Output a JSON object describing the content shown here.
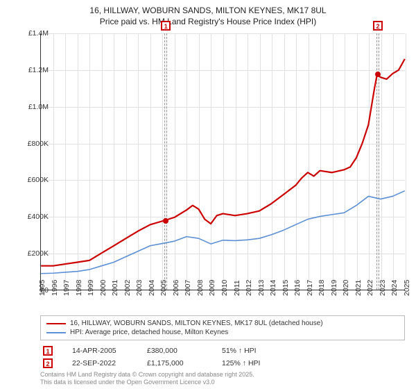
{
  "title": {
    "line1": "16, HILLWAY, WOBURN SANDS, MILTON KEYNES, MK17 8UL",
    "line2": "Price paid vs. HM Land Registry's House Price Index (HPI)"
  },
  "chart": {
    "type": "line",
    "background_color": "#ffffff",
    "grid_color": "#e0e0e0",
    "axis_color": "#333333",
    "x": {
      "min": 1995,
      "max": 2025,
      "ticks": [
        1995,
        1996,
        1997,
        1998,
        1999,
        2000,
        2001,
        2002,
        2003,
        2004,
        2005,
        2006,
        2007,
        2008,
        2009,
        2010,
        2011,
        2012,
        2013,
        2014,
        2015,
        2016,
        2017,
        2018,
        2019,
        2020,
        2021,
        2022,
        2023,
        2024,
        2025
      ],
      "label_fontsize": 10.5,
      "rotation": -90
    },
    "y": {
      "min": 0,
      "max": 1400000,
      "ticks": [
        0,
        200000,
        400000,
        600000,
        800000,
        1000000,
        1200000,
        1400000
      ],
      "tick_labels": [
        "£0",
        "£200K",
        "£400K",
        "£600K",
        "£800K",
        "£1.0M",
        "£1.2M",
        "£1.4M"
      ],
      "label_fontsize": 10.5
    },
    "bands": [
      {
        "id": "1",
        "x": 2005.28,
        "width_years": 0.25
      },
      {
        "id": "2",
        "x": 2022.72,
        "width_years": 0.25
      }
    ],
    "series": [
      {
        "name": "price_paid",
        "label": "16, HILLWAY, WOBURN SANDS, MILTON KEYNES, MK17 8UL (detached house)",
        "color": "#cc0000",
        "line_width": 2.2,
        "points": [
          [
            1995,
            130000
          ],
          [
            1996,
            130000
          ],
          [
            1997,
            140000
          ],
          [
            1998,
            150000
          ],
          [
            1999,
            160000
          ],
          [
            2000,
            200000
          ],
          [
            2001,
            240000
          ],
          [
            2002,
            280000
          ],
          [
            2003,
            320000
          ],
          [
            2004,
            355000
          ],
          [
            2005.28,
            380000
          ],
          [
            2006,
            395000
          ],
          [
            2007,
            435000
          ],
          [
            2007.5,
            460000
          ],
          [
            2008,
            440000
          ],
          [
            2008.5,
            385000
          ],
          [
            2009,
            360000
          ],
          [
            2009.5,
            405000
          ],
          [
            2010,
            415000
          ],
          [
            2011,
            405000
          ],
          [
            2012,
            415000
          ],
          [
            2013,
            430000
          ],
          [
            2014,
            470000
          ],
          [
            2015,
            520000
          ],
          [
            2016,
            570000
          ],
          [
            2016.5,
            610000
          ],
          [
            2017,
            640000
          ],
          [
            2017.5,
            620000
          ],
          [
            2018,
            650000
          ],
          [
            2019,
            640000
          ],
          [
            2020,
            655000
          ],
          [
            2020.5,
            670000
          ],
          [
            2021,
            720000
          ],
          [
            2021.5,
            800000
          ],
          [
            2022,
            900000
          ],
          [
            2022.5,
            1100000
          ],
          [
            2022.72,
            1175000
          ],
          [
            2023,
            1160000
          ],
          [
            2023.5,
            1150000
          ],
          [
            2024,
            1180000
          ],
          [
            2024.5,
            1200000
          ],
          [
            2025,
            1260000
          ]
        ]
      },
      {
        "name": "hpi",
        "label": "HPI: Average price, detached house, Milton Keynes",
        "color": "#5b8fd6",
        "line_width": 1.6,
        "points": [
          [
            1995,
            88000
          ],
          [
            1996,
            90000
          ],
          [
            1997,
            95000
          ],
          [
            1998,
            100000
          ],
          [
            1999,
            110000
          ],
          [
            2000,
            130000
          ],
          [
            2001,
            150000
          ],
          [
            2002,
            180000
          ],
          [
            2003,
            210000
          ],
          [
            2004,
            240000
          ],
          [
            2005,
            252000
          ],
          [
            2006,
            265000
          ],
          [
            2007,
            290000
          ],
          [
            2008,
            280000
          ],
          [
            2009,
            250000
          ],
          [
            2010,
            270000
          ],
          [
            2011,
            268000
          ],
          [
            2012,
            272000
          ],
          [
            2013,
            280000
          ],
          [
            2014,
            300000
          ],
          [
            2015,
            325000
          ],
          [
            2016,
            355000
          ],
          [
            2017,
            385000
          ],
          [
            2018,
            400000
          ],
          [
            2019,
            410000
          ],
          [
            2020,
            420000
          ],
          [
            2021,
            460000
          ],
          [
            2022,
            510000
          ],
          [
            2023,
            495000
          ],
          [
            2024,
            510000
          ],
          [
            2025,
            540000
          ]
        ]
      }
    ],
    "markers": [
      {
        "id": "1",
        "series": "price_paid",
        "x": 2005.28,
        "y": 380000,
        "color": "#cc0000"
      },
      {
        "id": "2",
        "series": "price_paid",
        "x": 2022.72,
        "y": 1175000,
        "color": "#cc0000"
      }
    ]
  },
  "legend": {
    "series": [
      {
        "color": "#cc0000",
        "label": "16, HILLWAY, WOBURN SANDS, MILTON KEYNES, MK17 8UL (detached house)"
      },
      {
        "color": "#5b8fd6",
        "label": "HPI: Average price, detached house, Milton Keynes"
      }
    ]
  },
  "transactions": [
    {
      "id": "1",
      "date": "14-APR-2005",
      "price": "£380,000",
      "delta": "51% ↑ HPI"
    },
    {
      "id": "2",
      "date": "22-SEP-2022",
      "price": "£1,175,000",
      "delta": "125% ↑ HPI"
    }
  ],
  "footer": {
    "line1": "Contains HM Land Registry data © Crown copyright and database right 2025.",
    "line2": "This data is licensed under the Open Government Licence v3.0"
  }
}
